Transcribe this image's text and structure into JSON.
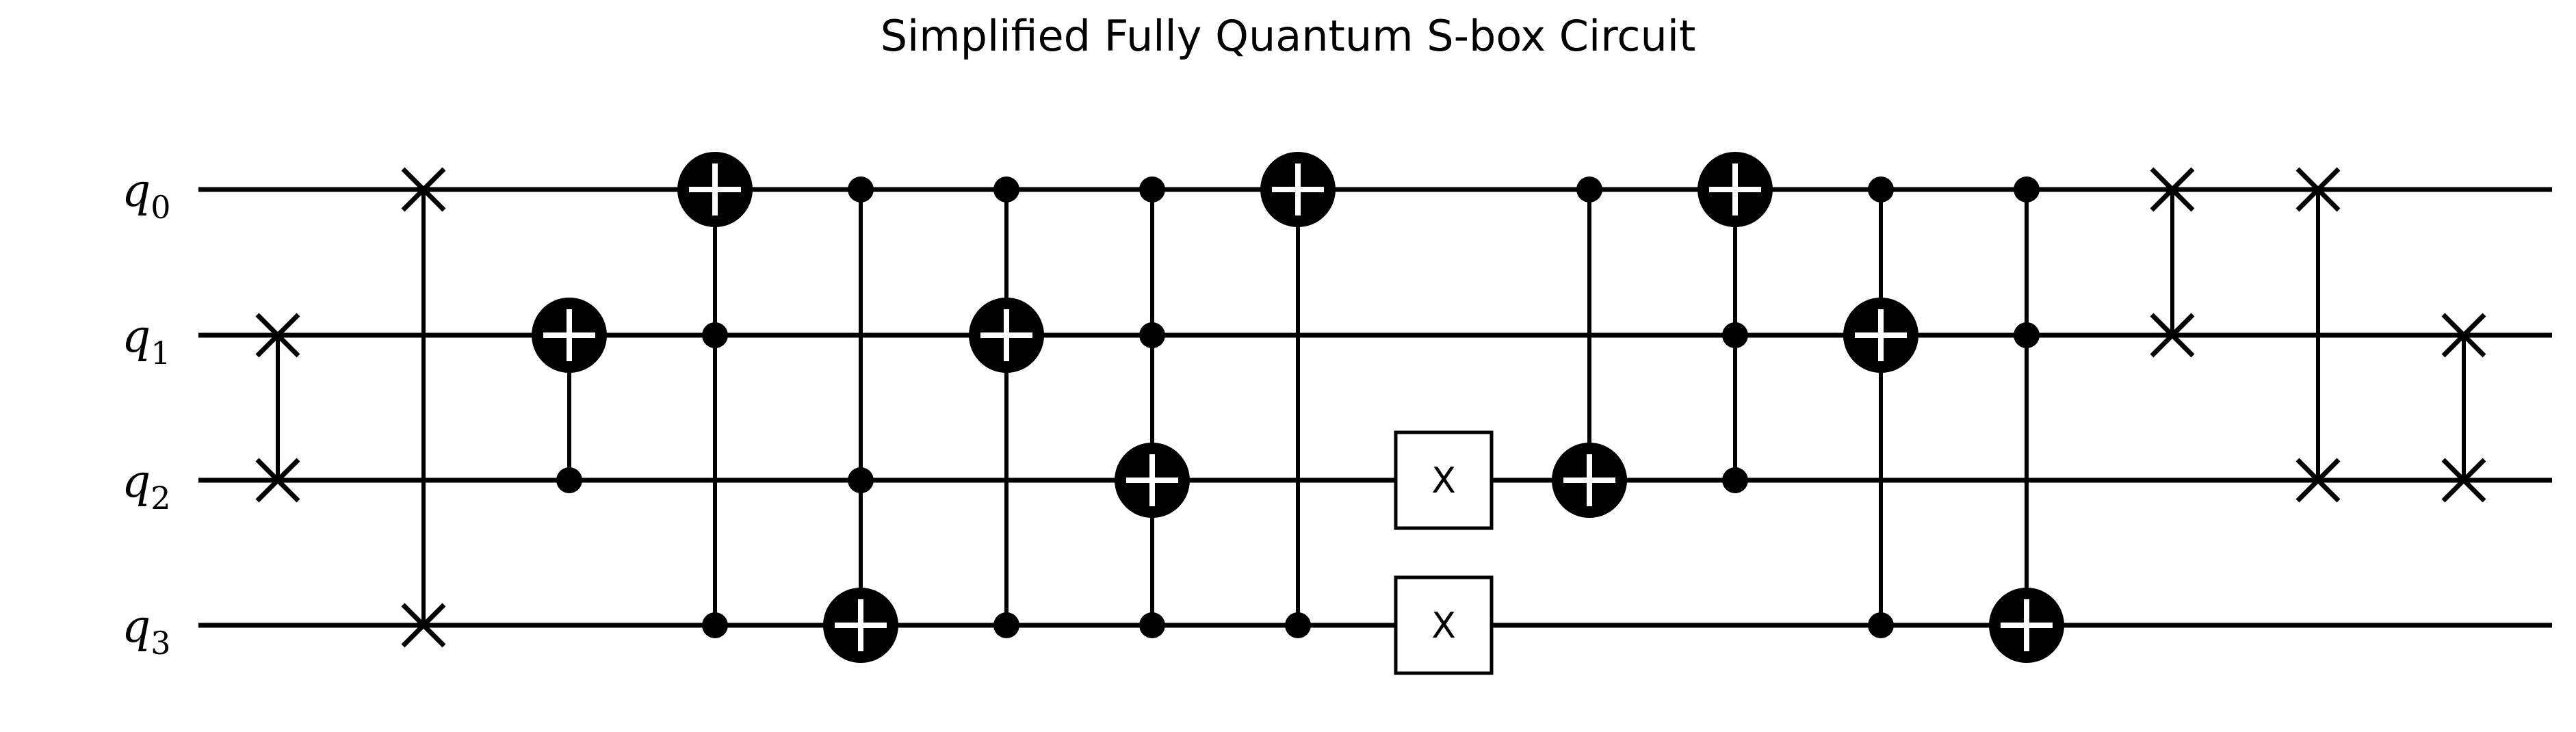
{
  "title": "Simplified Fully Quantum S-box Circuit",
  "qubits": [
    {
      "label": "q",
      "sub": "0"
    },
    {
      "label": "q",
      "sub": "1"
    },
    {
      "label": "q",
      "sub": "2"
    },
    {
      "label": "q",
      "sub": "3"
    }
  ],
  "gates": [
    {
      "type": "swap",
      "step": 0,
      "qubits": [
        1,
        2
      ]
    },
    {
      "type": "swap",
      "step": 1,
      "qubits": [
        0,
        3
      ]
    },
    {
      "type": "cnot",
      "step": 2,
      "controls": [
        2
      ],
      "target": 1
    },
    {
      "type": "cnot",
      "step": 3,
      "controls": [
        1,
        3
      ],
      "target": 0
    },
    {
      "type": "cnot",
      "step": 4,
      "controls": [
        0,
        2
      ],
      "target": 3
    },
    {
      "type": "cnot",
      "step": 5,
      "controls": [
        0,
        3
      ],
      "target": 1
    },
    {
      "type": "cnot",
      "step": 6,
      "controls": [
        0,
        1,
        3
      ],
      "target": 2
    },
    {
      "type": "cnot",
      "step": 7,
      "controls": [
        3
      ],
      "target": 0
    },
    {
      "type": "x",
      "step": 8,
      "qubit": 2,
      "label": "X"
    },
    {
      "type": "x",
      "step": 8,
      "qubit": 3,
      "label": "X"
    },
    {
      "type": "cnot",
      "step": 9,
      "controls": [
        0
      ],
      "target": 2
    },
    {
      "type": "cnot",
      "step": 10,
      "controls": [
        1,
        2
      ],
      "target": 0
    },
    {
      "type": "cnot",
      "step": 11,
      "controls": [
        0,
        3
      ],
      "target": 1
    },
    {
      "type": "cnot",
      "step": 12,
      "controls": [
        0,
        1
      ],
      "target": 3
    },
    {
      "type": "swap",
      "step": 13,
      "qubits": [
        0,
        1
      ]
    },
    {
      "type": "swap",
      "step": 14,
      "qubits": [
        0,
        2
      ]
    },
    {
      "type": "swap",
      "step": 15,
      "qubits": [
        1,
        2
      ]
    }
  ]
}
